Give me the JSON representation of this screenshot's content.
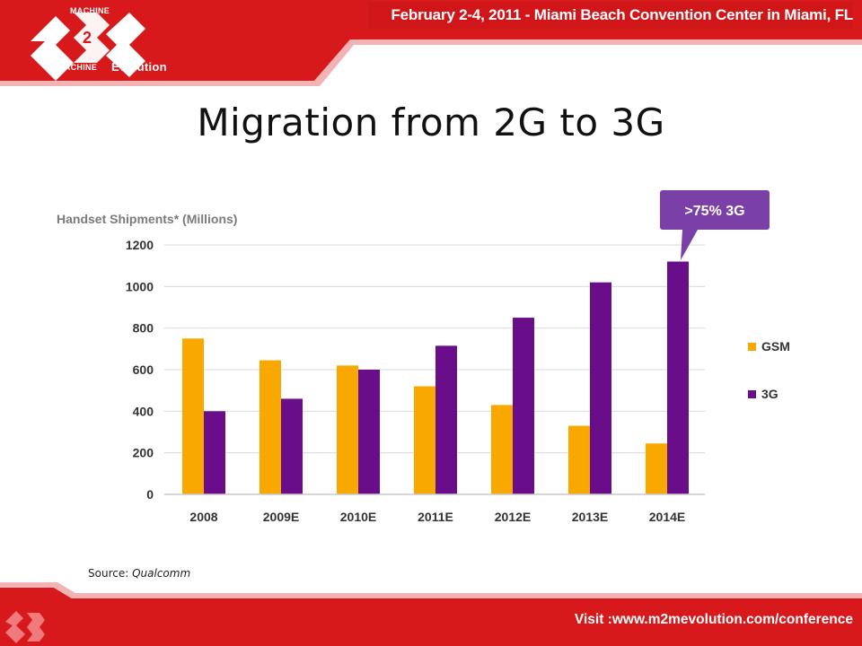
{
  "header": {
    "event_line": "February 2-4, 2011 - Miami Beach Convention Center in Miami, FL",
    "logo": {
      "top_word": "MACHINE",
      "bottom_word": "MACHINE",
      "tagline": "Evolution"
    }
  },
  "slide": {
    "title": "Migration from 2G to 3G"
  },
  "source": {
    "prefix": "Source:",
    "name": "Qualcomm"
  },
  "footer": {
    "visit_text": "Visit :www.m2mevolution.com/conference"
  },
  "colors": {
    "brand_red": "#d7191c",
    "gsm": "#f9a800",
    "three_g": "#6a0d8a",
    "callout": "#7b3fa8"
  },
  "chart_data": {
    "type": "bar",
    "title": "Handset Shipments* (Millions)",
    "categories": [
      "2008",
      "2009E",
      "2010E",
      "2011E",
      "2012E",
      "2013E",
      "2014E"
    ],
    "series": [
      {
        "name": "GSM",
        "values": [
          750,
          645,
          620,
          520,
          430,
          330,
          245
        ]
      },
      {
        "name": "3G",
        "values": [
          400,
          460,
          600,
          715,
          850,
          1020,
          1120
        ]
      }
    ],
    "yticks": [
      "0",
      "200",
      "400",
      "600",
      "800",
      "1000",
      "1200"
    ],
    "ylim": [
      0,
      1200
    ],
    "grid": true,
    "legend": "right",
    "callout": ">75% 3G"
  }
}
